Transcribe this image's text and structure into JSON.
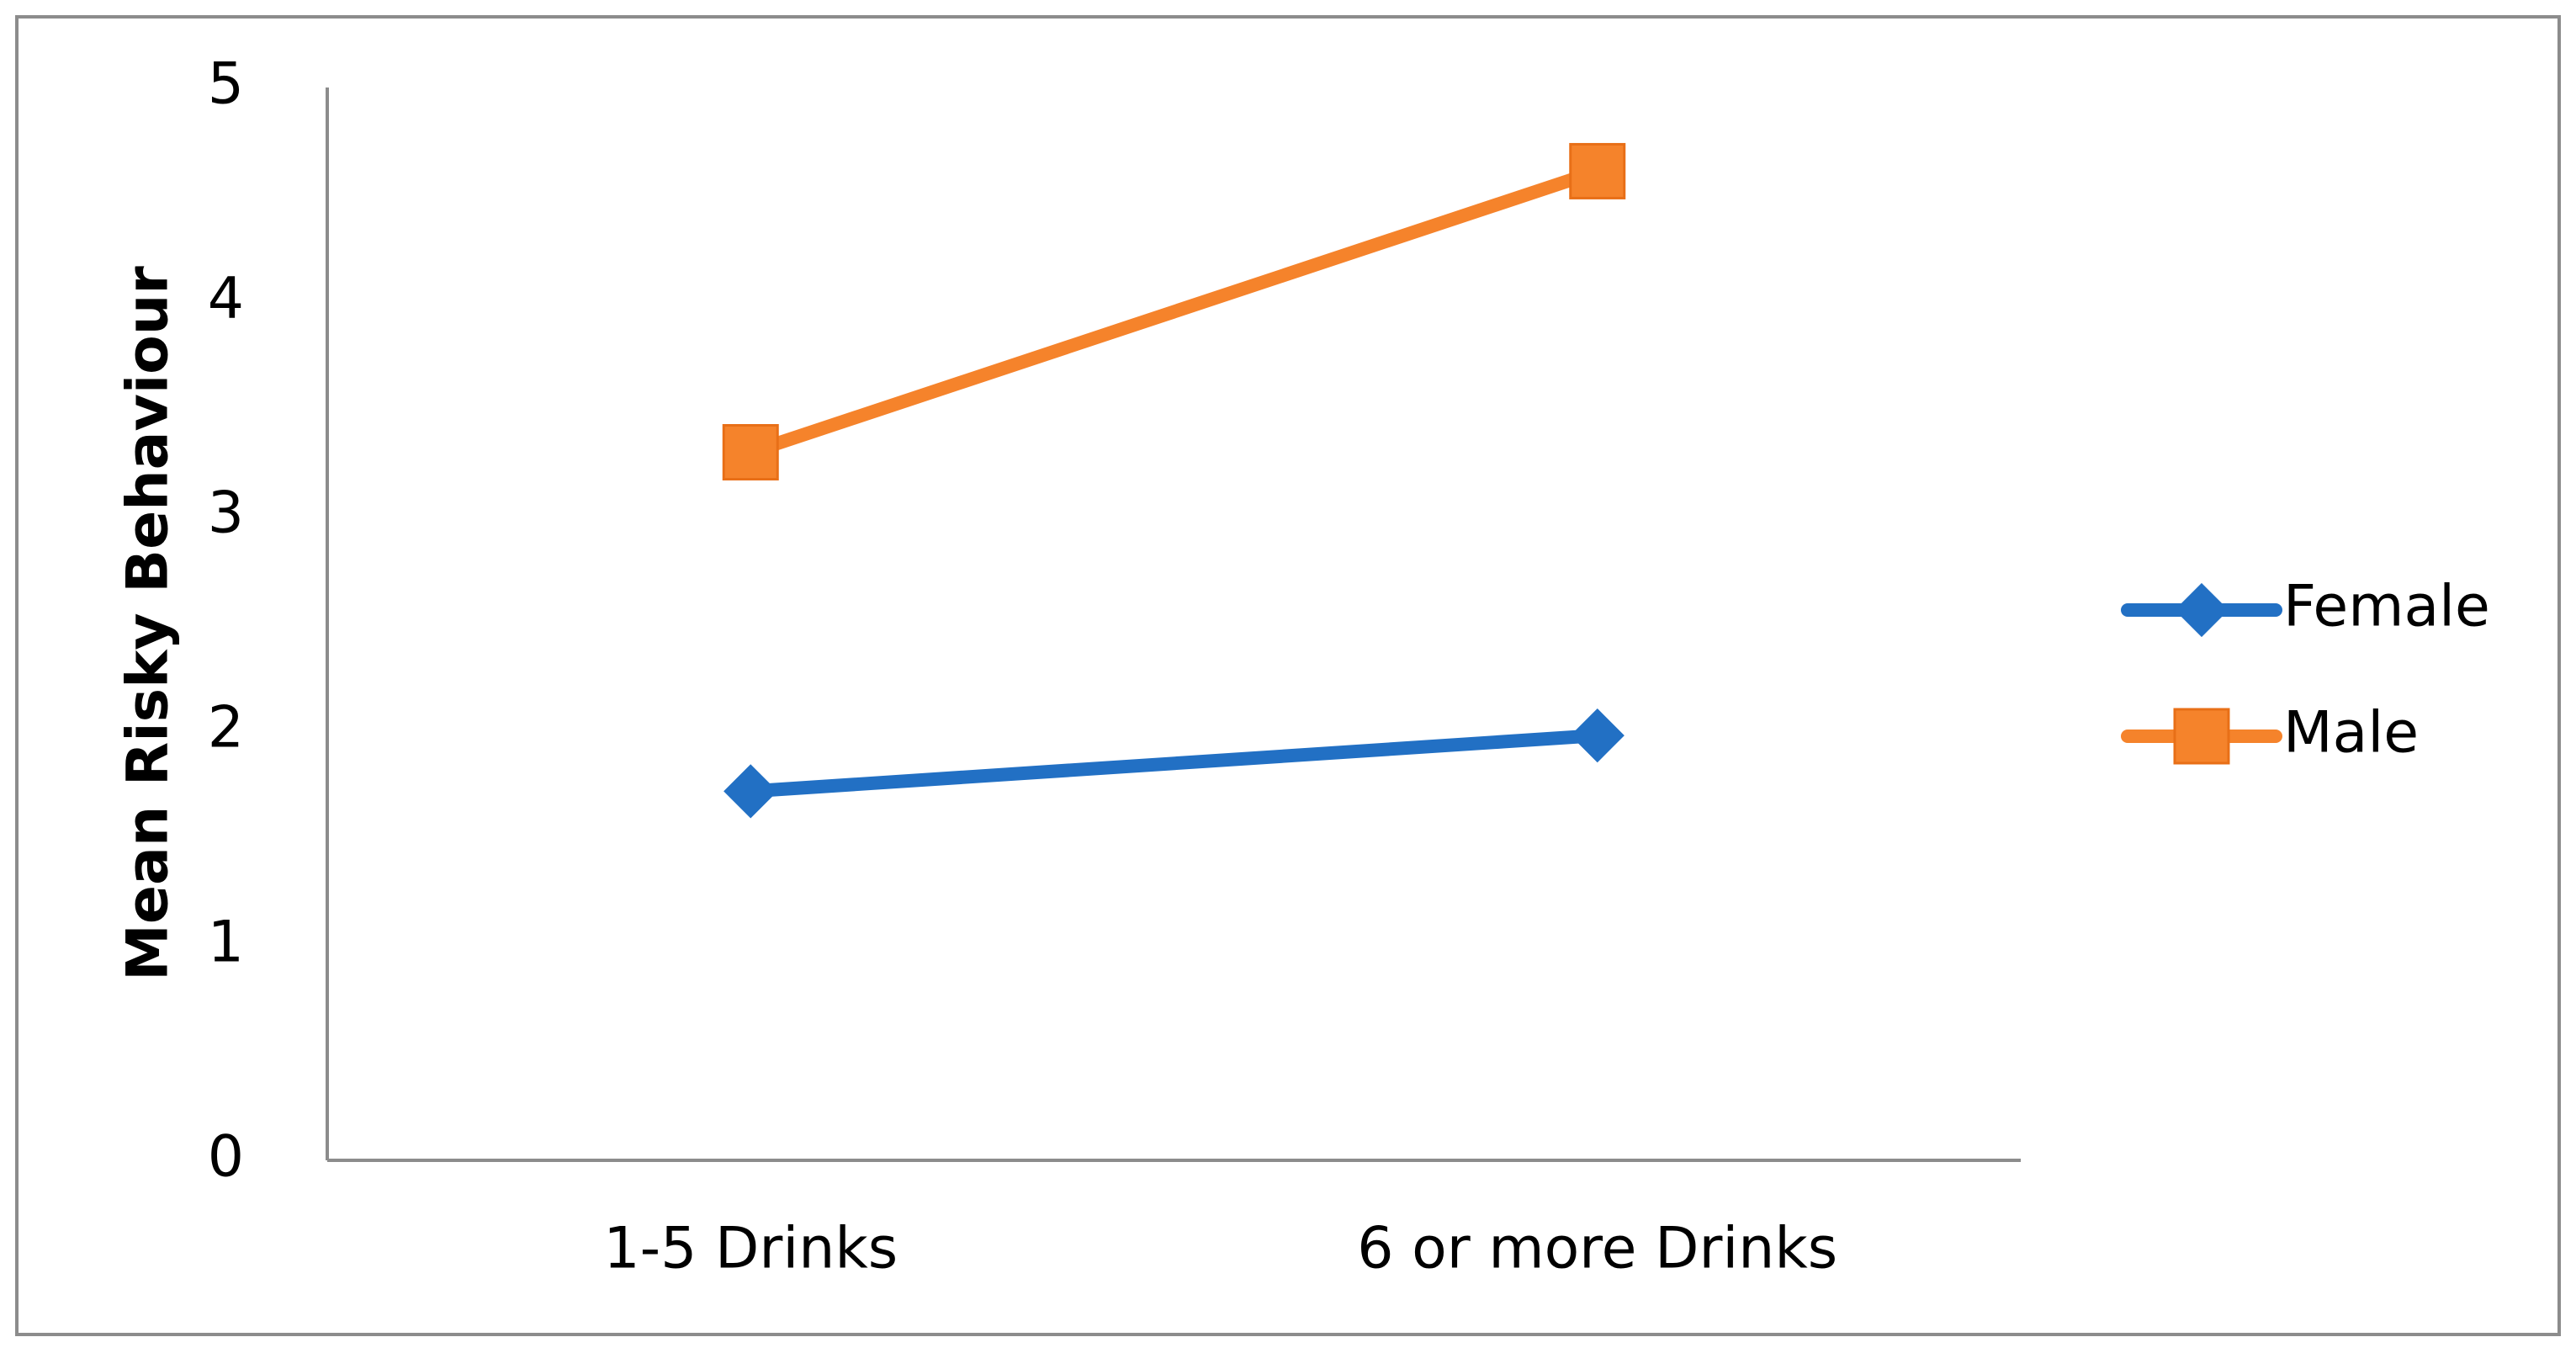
{
  "chart_data": {
    "type": "line",
    "y_label": "Mean Risky Behaviour",
    "categories": [
      "1-5 Drinks",
      "6 or more Drinks"
    ],
    "series": [
      {
        "name": "Female",
        "color": "#2270c4",
        "marker": "diamond",
        "values": [
          1.72,
          1.98
        ]
      },
      {
        "name": "Male",
        "color": "#f5832b",
        "marker": "square",
        "values": [
          3.3,
          4.61
        ]
      }
    ],
    "ylim": [
      0,
      5
    ],
    "yticks": [
      0,
      1,
      2,
      3,
      4,
      5
    ],
    "grid": false,
    "legend": "right"
  }
}
